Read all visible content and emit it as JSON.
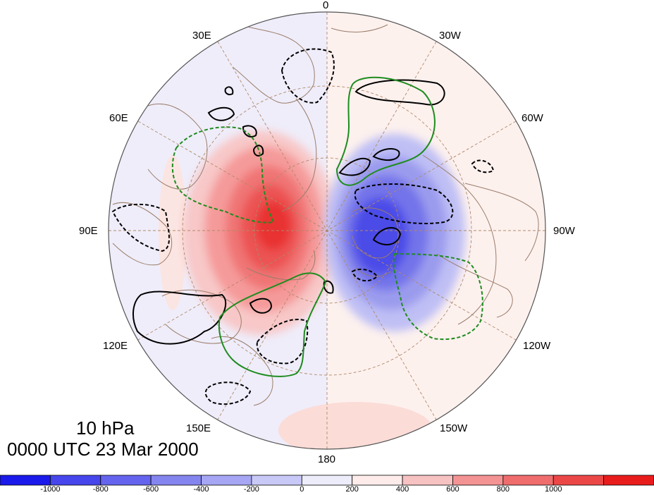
{
  "title": {
    "level": "10 hPa",
    "datetime": "0000 UTC 23 Mar 2000"
  },
  "map": {
    "projection": "polar-stereographic-north",
    "longitude_labels": {
      "top": "0",
      "top_left": "30E",
      "top_right": "30W",
      "upper_left": "60E",
      "upper_right": "60W",
      "left": "90E",
      "right": "90W",
      "lower_left": "120E",
      "lower_right": "120W",
      "bottom_left": "150E",
      "bottom_right": "150W",
      "bottom": "180"
    },
    "fill_colors": {
      "ocean_background": "#fdf1ee",
      "neg_200": "#ececfb",
      "neg_400": "#bfbff5",
      "neg_600": "#9b9bee",
      "neg_800": "#7373ea",
      "neg_1000": "#4c4ce8",
      "pos_200": "#f8c7c7",
      "pos_400": "#f59a9a",
      "pos_600": "#f07575",
      "pos_800": "#ec5252",
      "pos_1000": "#e93131"
    },
    "contour_colors": {
      "black": "#000000",
      "green": "#1e8c1e",
      "coast": "#9a7d6a",
      "grid": "#b08a6a"
    }
  },
  "colorbar": {
    "colors": [
      "#1a1aeb",
      "#4646ec",
      "#6464ee",
      "#8585ef",
      "#a6a6f4",
      "#c9c9f8",
      "#ececfb",
      "#fdecea",
      "#f7c2c2",
      "#f49393",
      "#f06d6d",
      "#ec4747",
      "#e91c1c"
    ],
    "tick_labels": [
      "-1000",
      "-800",
      "-600",
      "-400",
      "-200",
      "0",
      "200",
      "400",
      "600",
      "800",
      "1000"
    ]
  }
}
